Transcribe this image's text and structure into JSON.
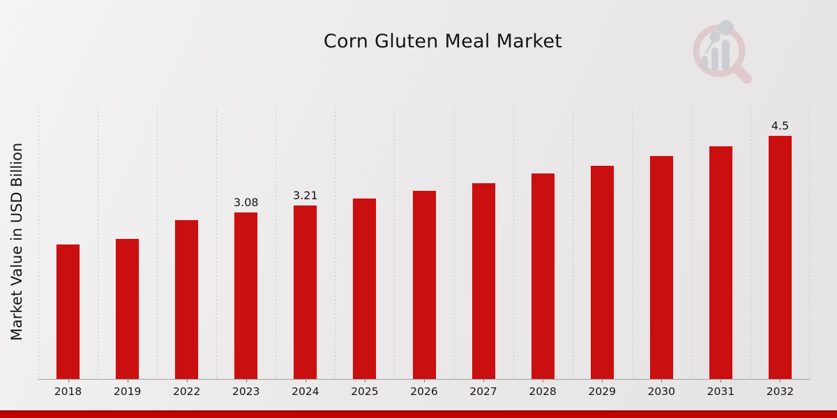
{
  "chart_data": {
    "type": "bar",
    "title": "Corn Gluten Meal Market",
    "ylabel": "Market Value in USD Billion",
    "xlabel": "",
    "categories": [
      "2018",
      "2019",
      "2022",
      "2023",
      "2024",
      "2025",
      "2026",
      "2027",
      "2028",
      "2029",
      "2030",
      "2031",
      "2032"
    ],
    "values": [
      2.5,
      2.6,
      2.94,
      3.08,
      3.21,
      3.34,
      3.48,
      3.63,
      3.8,
      3.95,
      4.13,
      4.31,
      4.5
    ],
    "data_labels": [
      "",
      "",
      "",
      "3.08",
      "3.21",
      "",
      "",
      "",
      "",
      "",
      "",
      "",
      "4.5"
    ],
    "ylim": [
      0,
      5
    ],
    "grid": "vertical dashed lines at category boundaries",
    "legend": "none",
    "bar_color": "#c90f10"
  },
  "branding": {
    "watermark_icon": "magnifier-bar-chart-logo-icon"
  },
  "colors": {
    "bar": "#c90f10",
    "footer_strip_top": "#8d0c0c",
    "footer_strip": "#c30202",
    "gridline": "#c7c7c7",
    "axis_line": "#9f9f9f",
    "text": "#141414",
    "watermark_pink": "#dfc7cb",
    "watermark_gray": "#cbccd1"
  }
}
